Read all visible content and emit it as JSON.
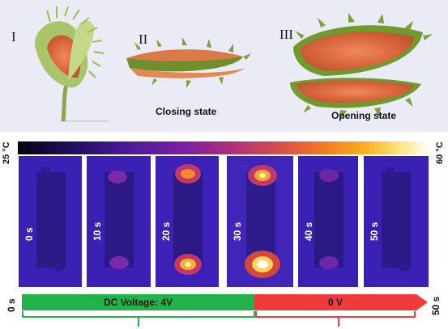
{
  "panel": {
    "stages": [
      {
        "numeral": "I"
      },
      {
        "numeral": "II",
        "caption": "Closing state"
      },
      {
        "numeral": "III",
        "caption": "Opening state"
      }
    ]
  },
  "colorbar": {
    "min_label": "25 °C",
    "max_label": "60 °C"
  },
  "frames": [
    {
      "time": "0 s"
    },
    {
      "time": "10 s"
    },
    {
      "time": "20 s"
    },
    {
      "time": "30 s"
    },
    {
      "time": "40 s"
    },
    {
      "time": "50 s"
    }
  ],
  "timeline": {
    "start_label": "0 s",
    "end_label": "50 s",
    "on_label": "DC Voltage: 4V",
    "off_label": "0 V"
  },
  "colors": {
    "on_phase": "#22b24a",
    "off_phase": "#ef3b3b",
    "frame_base": "#3a1fb5"
  }
}
